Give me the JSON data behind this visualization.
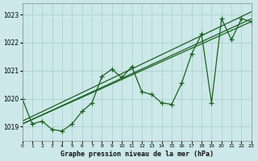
{
  "title": "Graphe pression niveau de la mer (hPa)",
  "bg_color": "#cce8e8",
  "grid_color": "#aacccc",
  "line_color": "#1a6020",
  "xlim": [
    0,
    23
  ],
  "ylim": [
    1018.5,
    1023.4
  ],
  "yticks": [
    1019,
    1020,
    1021,
    1022,
    1023
  ],
  "xticks": [
    0,
    1,
    2,
    3,
    4,
    5,
    6,
    7,
    8,
    9,
    10,
    11,
    12,
    13,
    14,
    15,
    16,
    17,
    18,
    19,
    20,
    21,
    22,
    23
  ],
  "jagged_y": [
    1020.0,
    1019.1,
    1019.2,
    1018.9,
    1018.85,
    1019.1,
    1019.55,
    1019.85,
    1020.8,
    1021.05,
    1020.75,
    1021.15,
    1020.25,
    1020.15,
    1019.85,
    1019.8,
    1020.55,
    1021.6,
    1022.3,
    1019.85,
    1022.85,
    1022.1,
    1022.85,
    1022.75
  ],
  "trend1_x": [
    0,
    23
  ],
  "trend1_y": [
    1019.1,
    1022.75
  ],
  "trend2_x": [
    0,
    23
  ],
  "trend2_y": [
    1019.1,
    1022.85
  ],
  "trend3_x": [
    0,
    23
  ],
  "trend3_y": [
    1019.2,
    1023.1
  ],
  "marker": "+",
  "marker_size": 4,
  "linewidth": 0.9,
  "trend_linewidth": 0.9
}
